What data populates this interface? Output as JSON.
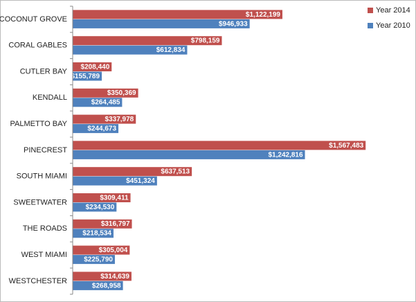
{
  "chart_data": {
    "type": "hbar",
    "categories": [
      "COCONUT GROVE",
      "CORAL GABLES",
      "CUTLER BAY",
      "KENDALL",
      "PALMETTO BAY",
      "PINECREST",
      "SOUTH MIAMI",
      "SWEETWATER",
      "THE ROADS",
      "WEST MIAMI",
      "WESTCHESTER"
    ],
    "series": [
      {
        "name": "Year 2014",
        "color": "#c0504d",
        "values": [
          1122199,
          798159,
          208440,
          350369,
          337978,
          1567483,
          637513,
          309411,
          316797,
          305004,
          314639
        ],
        "value_labels": [
          "$1,122,199",
          "$798,159",
          "$208,440",
          "$350,369",
          "$337,978",
          "$1,567,483",
          "$637,513",
          "$309,411",
          "$316,797",
          "$305,004",
          "$314,639"
        ]
      },
      {
        "name": "Year 2010",
        "color": "#4f81bd",
        "values": [
          946933,
          612834,
          155789,
          264485,
          244673,
          1242816,
          451324,
          234530,
          218534,
          225790,
          268958
        ],
        "value_labels": [
          "$946,933",
          "$612,834",
          "$155,789",
          "$264,485",
          "$244,673",
          "$1,242,816",
          "$451,324",
          "$234,530",
          "$218,534",
          "$225,790",
          "$268,958"
        ]
      }
    ],
    "legend": "top-right"
  }
}
